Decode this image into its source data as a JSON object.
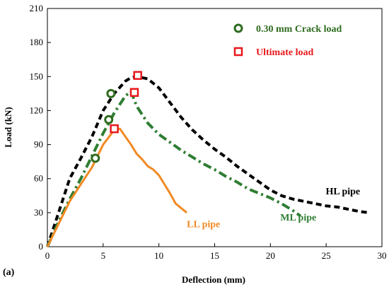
{
  "panel_label": "(a)",
  "chart_data": {
    "type": "line",
    "title": "",
    "xlabel": "Deflection (mm)",
    "ylabel": "Load (kN)",
    "xlim": [
      0,
      30
    ],
    "ylim": [
      0,
      210
    ],
    "xticks": [
      0,
      5,
      10,
      15,
      20,
      25,
      30
    ],
    "yticks": [
      0,
      30,
      60,
      90,
      120,
      150,
      180,
      210
    ],
    "grid": false,
    "legend_position": "top-right",
    "series": [
      {
        "name": "HL pipe",
        "color": "#000000",
        "style": "dashed",
        "x": [
          0,
          1,
          2,
          3,
          4,
          5,
          6,
          7,
          7.5,
          8,
          9,
          10,
          11,
          12,
          13,
          14,
          15,
          16,
          17,
          18,
          19,
          20,
          21,
          22,
          23,
          24,
          25,
          26,
          27,
          28,
          28.8
        ],
        "y": [
          0,
          30,
          60,
          78,
          97,
          120,
          135,
          146,
          149,
          150,
          148,
          140,
          127,
          114,
          103,
          94,
          86,
          79,
          71,
          64,
          57,
          50,
          45,
          42,
          40,
          38,
          36,
          35,
          33,
          31,
          30
        ]
      },
      {
        "name": "ML pipe",
        "color": "#2e7d32",
        "style": "dashdot",
        "x": [
          0,
          1,
          2,
          3,
          4,
          5,
          6,
          7,
          7.5,
          8,
          9,
          10,
          11,
          12,
          13,
          14,
          15,
          16,
          17,
          18,
          19,
          20,
          21,
          22,
          22.7
        ],
        "y": [
          0,
          22,
          42,
          60,
          80,
          100,
          118,
          133,
          137,
          124,
          109,
          99,
          92,
          85,
          79,
          73,
          68,
          62,
          57,
          51,
          47,
          43,
          38,
          32,
          27
        ]
      },
      {
        "name": "LL pipe",
        "color": "#f08a24",
        "style": "solid",
        "x": [
          0,
          1,
          2,
          3,
          4,
          5,
          6,
          6.5,
          7,
          7.5,
          8,
          8.5,
          9,
          9.5,
          10,
          10.5,
          11,
          11.5,
          12,
          12.5
        ],
        "y": [
          0,
          20,
          40,
          55,
          70,
          90,
          103,
          104,
          97,
          90,
          82,
          77,
          71,
          68,
          63,
          55,
          47,
          38,
          34,
          30
        ]
      }
    ],
    "markers": [
      {
        "legend": "0.30 mm Crack load",
        "shape": "circle",
        "color": "#2e6b1f",
        "points": [
          [
            4.3,
            78
          ],
          [
            5.5,
            112
          ],
          [
            5.7,
            135
          ]
        ]
      },
      {
        "legend": "Ultimate load",
        "shape": "square",
        "color": "#e8191c",
        "points": [
          [
            6,
            104
          ],
          [
            7.8,
            136
          ],
          [
            8.1,
            151
          ]
        ]
      }
    ],
    "annotations": [
      {
        "text": "HL pipe",
        "x": 26.5,
        "y": 46,
        "color": "#000000"
      },
      {
        "text": "ML pipe",
        "x": 22.5,
        "y": 23,
        "color": "#2e7d32"
      },
      {
        "text": "LL pipe",
        "x": 14,
        "y": 17,
        "color": "#f08a24"
      }
    ]
  }
}
